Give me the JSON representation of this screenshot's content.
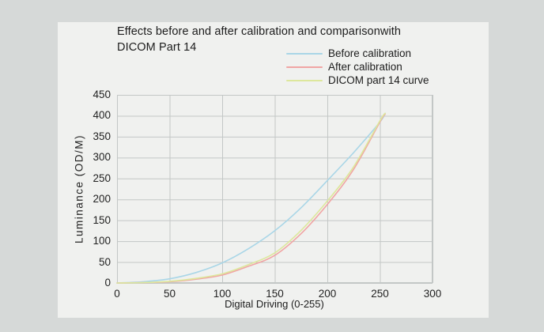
{
  "figure": {
    "title": "Effects before and after calibration and comparisonwith DICOM Part 14",
    "x_axis_label": "Digital Driving (0-255)",
    "y_axis_label": "Luminance (OD/M)"
  },
  "colors": {
    "background": "#d6d9d8",
    "panel": "#f0f1ef",
    "grid": "#c3c7c6",
    "text": "#1c1c1c",
    "before_calibration": "#a9d6e7",
    "after_calibration": "#f0a5a4",
    "dicom_curve": "#dde79c"
  },
  "chart_data": {
    "type": "line",
    "title": "Effects before and after calibration and comparisonwith DICOM Part 14",
    "xlabel": "Digital Driving (0-255)",
    "ylabel": "Luminance (OD/M)",
    "xlim": [
      0,
      300
    ],
    "ylim": [
      0,
      450
    ],
    "x_ticks": [
      0,
      50,
      100,
      150,
      200,
      250,
      300
    ],
    "y_ticks": [
      0,
      50,
      100,
      150,
      200,
      250,
      300,
      350,
      400,
      450
    ],
    "grid": true,
    "legend_position": "top-right",
    "x": [
      0,
      25,
      50,
      75,
      100,
      125,
      150,
      175,
      200,
      225,
      250,
      255
    ],
    "series": [
      {
        "name": "Before calibration",
        "color": "#a9d6e7",
        "values": [
          0,
          3,
          10,
          25,
          48,
          82,
          125,
          180,
          245,
          312,
          385,
          406
        ]
      },
      {
        "name": "After calibration",
        "color": "#f0a5a4",
        "values": [
          0,
          1,
          3,
          9,
          19,
          40,
          66,
          118,
          188,
          272,
          385,
          404
        ]
      },
      {
        "name": "DICOM part 14 curve",
        "color": "#dde79c",
        "values": [
          0,
          1,
          4,
          11,
          22,
          44,
          72,
          126,
          196,
          278,
          388,
          406
        ]
      }
    ]
  }
}
